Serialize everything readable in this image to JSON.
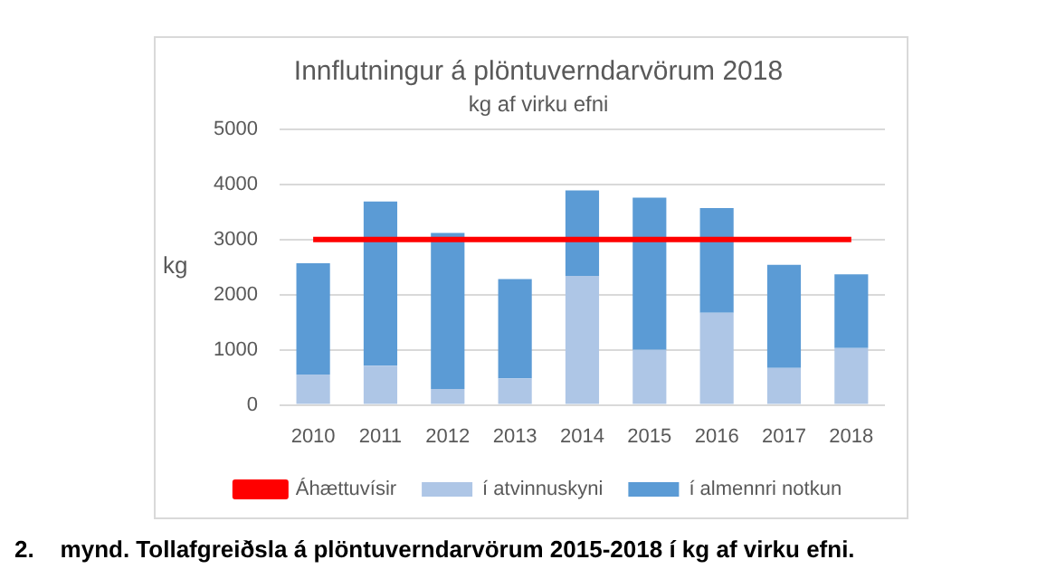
{
  "chart_data": {
    "type": "bar",
    "title": "Innflutningur á plöntuverndarvörum 2018",
    "subtitle": "kg af virku efni",
    "ylabel": "kg",
    "categories": [
      "2010",
      "2011",
      "2012",
      "2013",
      "2014",
      "2015",
      "2016",
      "2017",
      "2018"
    ],
    "series": [
      {
        "name": "í atvinnuskyni",
        "color": "#aec6e6",
        "values": [
          550,
          710,
          290,
          480,
          2340,
          1000,
          1670,
          670,
          1030
        ]
      },
      {
        "name": "í almennri notkun",
        "color": "#5b9bd5",
        "values": [
          2020,
          2980,
          2830,
          1800,
          1550,
          2760,
          1900,
          1870,
          1340
        ]
      },
      {
        "name": "Áhættuvísir",
        "type": "line",
        "color": "#ff0000",
        "marker": "none",
        "values": [
          3000,
          3000,
          3000,
          3000,
          3000,
          3000,
          3000,
          3000,
          3000
        ]
      }
    ],
    "stacked": true,
    "ylim": [
      0,
      5000
    ],
    "yticks": [
      0,
      1000,
      2000,
      3000,
      4000,
      5000
    ],
    "grid": "y",
    "legend": "bottom",
    "annotations": [
      "2.    mynd. Tollafgreiðsla á plöntuverndarvörum 2015-2018 í kg af virku efni."
    ]
  }
}
